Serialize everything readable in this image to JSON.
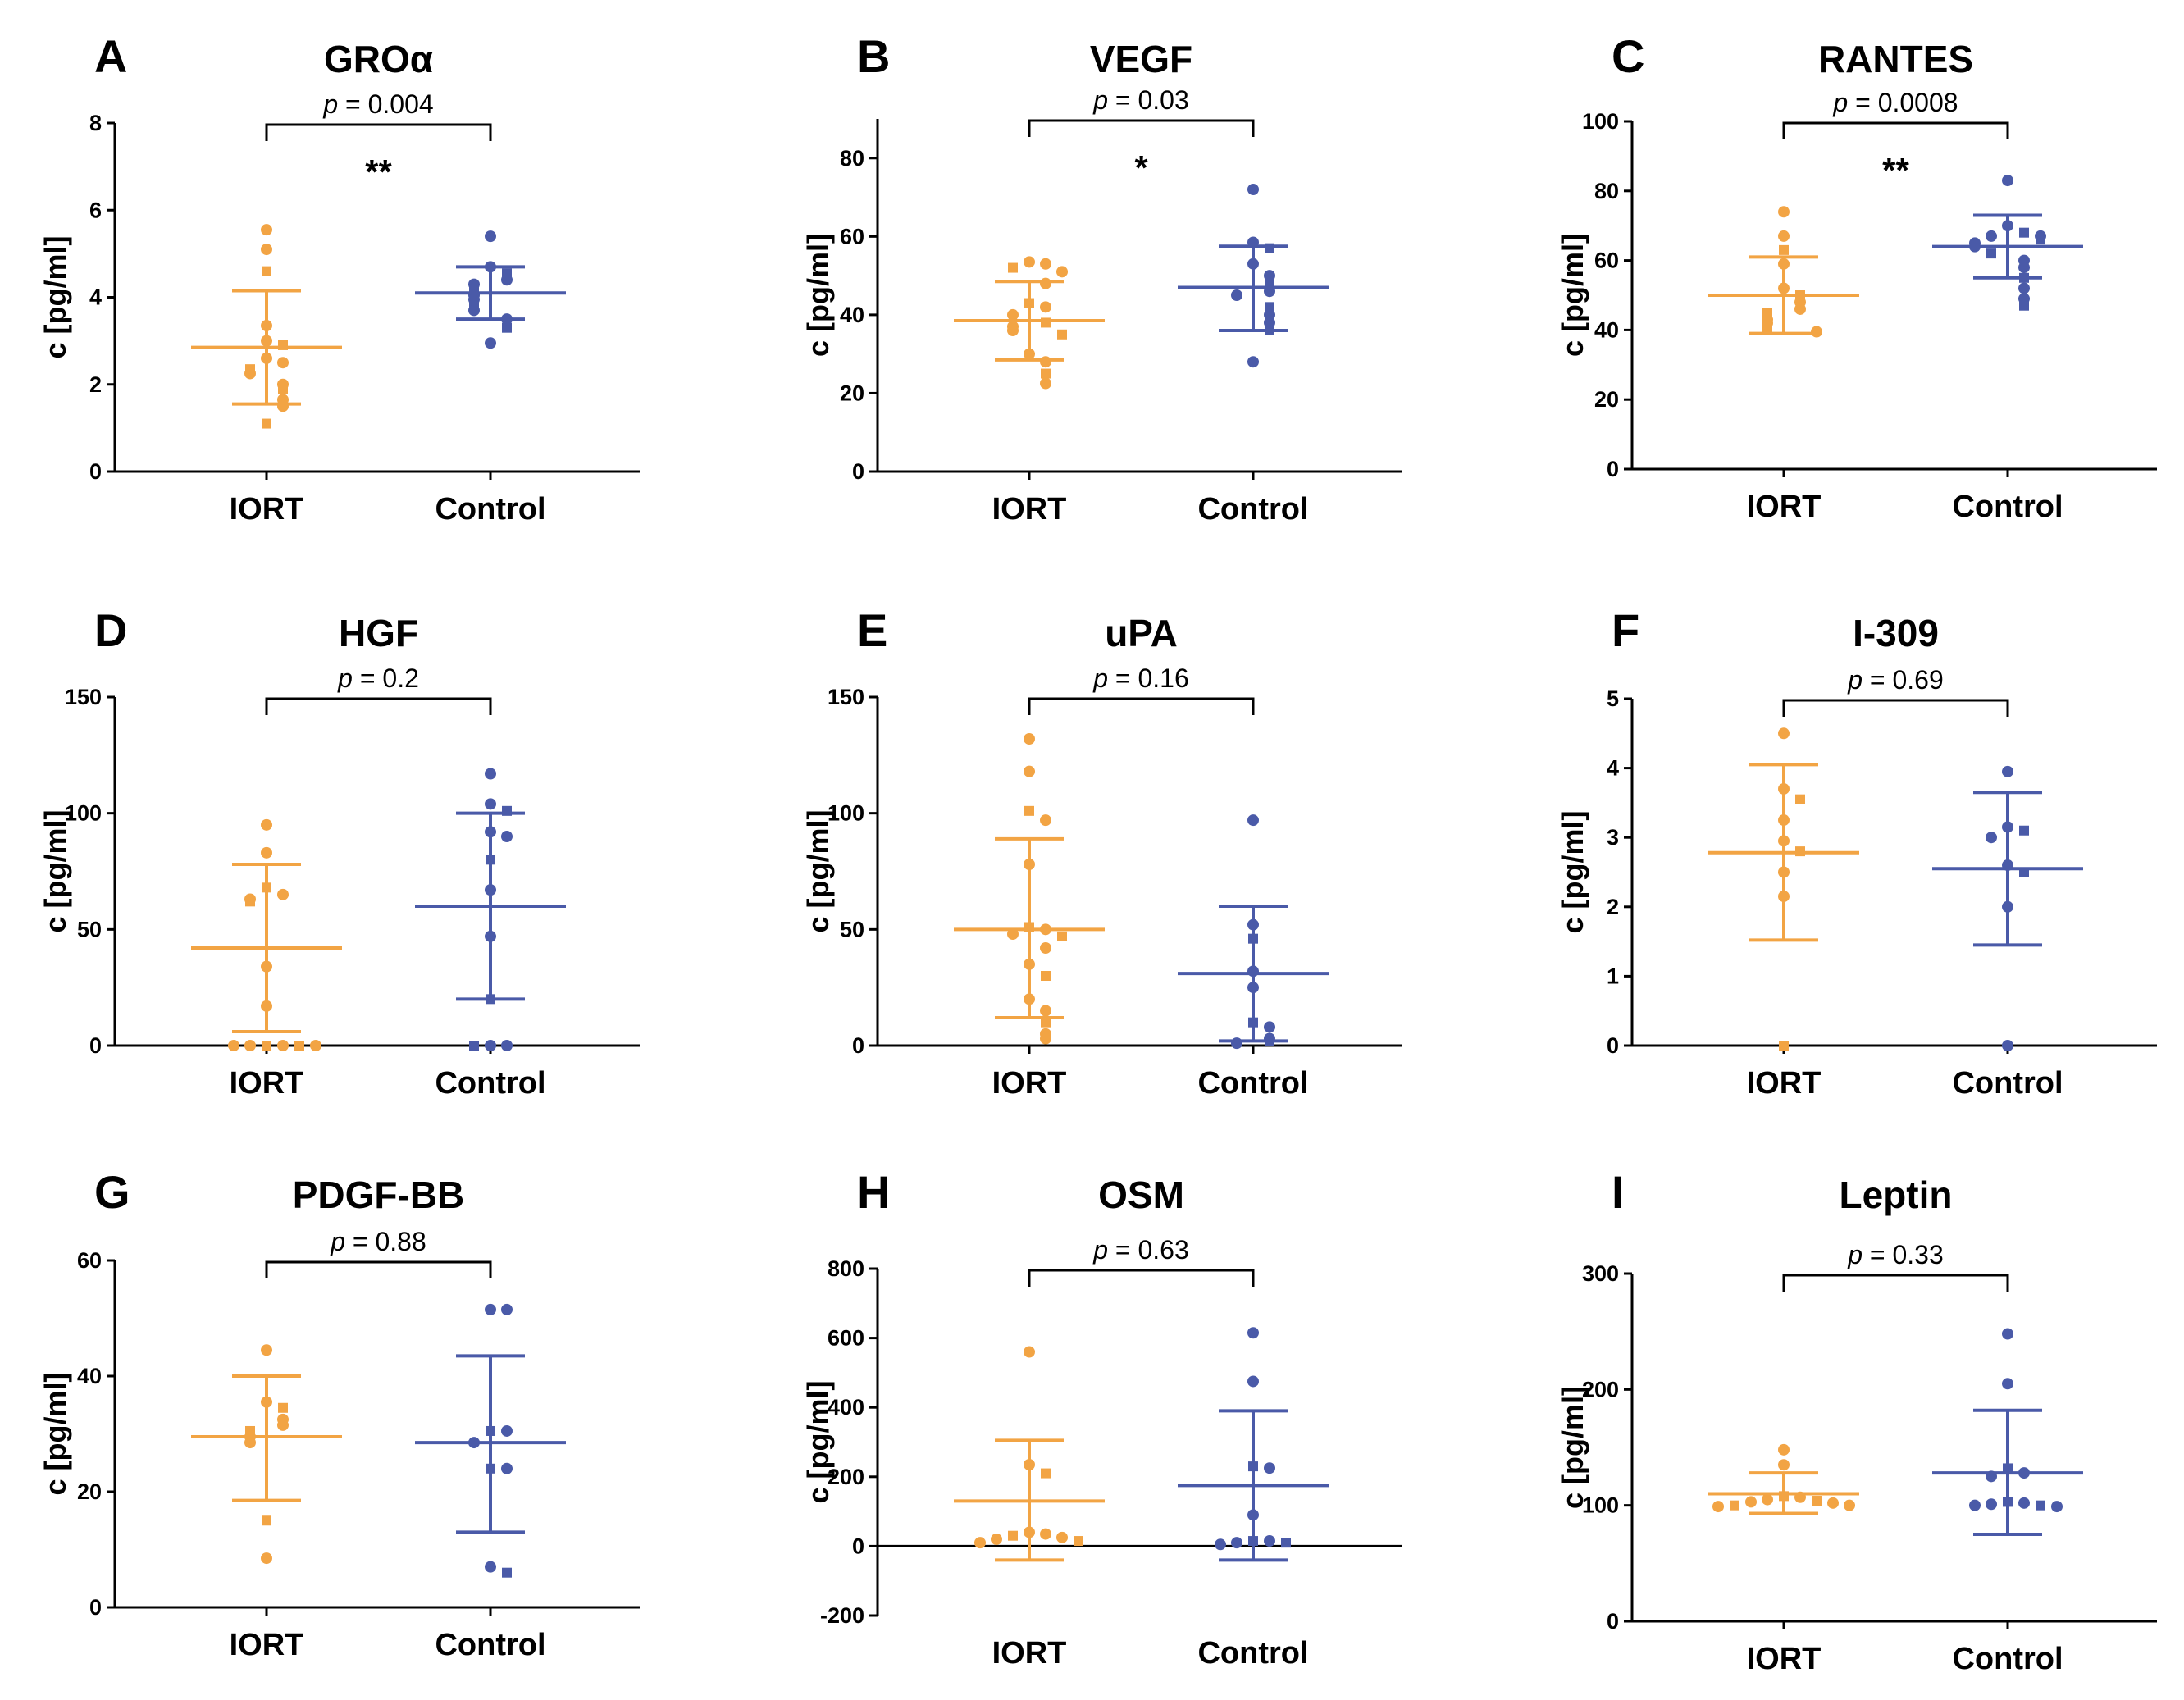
{
  "figure": {
    "colors": {
      "IORT": "#F2A444",
      "Control": "#4A5AA8",
      "axis": "#000000"
    }
  },
  "chart_data": [
    {
      "letter": "A",
      "title": "GROα",
      "type": "scatter",
      "categories": [
        "IORT",
        "Control"
      ],
      "ylabel": "c [pg/ml]",
      "ylim": [
        0,
        8
      ],
      "yticks": [
        0,
        2,
        4,
        6,
        8
      ],
      "p_label": "p",
      "p_value": "= 0.004",
      "significance": "**",
      "series": [
        {
          "name": "IORT",
          "mean": 2.85,
          "sd_low": 1.55,
          "sd_high": 4.15,
          "points": [
            5.55,
            5.1,
            4.6,
            3.35,
            3.0,
            2.9,
            2.6,
            2.5,
            2.35,
            2.25,
            2.0,
            1.9,
            1.65,
            1.5,
            1.1
          ]
        },
        {
          "name": "Control",
          "mean": 4.1,
          "sd_low": 3.5,
          "sd_high": 4.7,
          "points": [
            5.4,
            4.7,
            4.55,
            4.4,
            4.3,
            4.15,
            4.05,
            3.95,
            3.8,
            3.7,
            3.5,
            3.3,
            2.95
          ]
        }
      ]
    },
    {
      "letter": "B",
      "title": "VEGF",
      "type": "scatter",
      "categories": [
        "IORT",
        "Control"
      ],
      "ylabel": "c [pg/ml]",
      "ylim": [
        0,
        90
      ],
      "yticks": [
        0,
        20,
        40,
        60,
        80
      ],
      "p_label": "p",
      "p_value": "= 0.03",
      "significance": "*",
      "series": [
        {
          "name": "IORT",
          "mean": 38.5,
          "sd_low": 28.5,
          "sd_high": 48.5,
          "points": [
            53.5,
            53,
            52,
            51,
            48,
            43,
            42,
            40,
            38,
            37,
            36,
            35,
            30,
            28,
            25,
            22.5
          ]
        },
        {
          "name": "Control",
          "mean": 47,
          "sd_low": 36,
          "sd_high": 57.5,
          "points": [
            72,
            58.5,
            57,
            53,
            50,
            48,
            46,
            45,
            42,
            40,
            38,
            36,
            28
          ]
        }
      ]
    },
    {
      "letter": "C",
      "title": "RANTES",
      "type": "scatter",
      "categories": [
        "IORT",
        "Control"
      ],
      "ylabel": "c [pg/ml]",
      "ylim": [
        0,
        100
      ],
      "yticks": [
        0,
        20,
        40,
        60,
        80,
        100
      ],
      "p_label": "p",
      "p_value": "= 0.0008",
      "significance": "**",
      "series": [
        {
          "name": "IORT",
          "mean": 50,
          "sd_low": 39,
          "sd_high": 61,
          "points": [
            74,
            67,
            63,
            59,
            52,
            50,
            48,
            46,
            45,
            43,
            42,
            40,
            39.5
          ]
        },
        {
          "name": "Control",
          "mean": 64,
          "sd_low": 55,
          "sd_high": 73,
          "points": [
            83,
            70,
            68,
            67,
            67,
            66,
            65,
            64,
            62,
            60,
            58,
            55,
            52,
            49,
            47
          ]
        }
      ]
    },
    {
      "letter": "D",
      "title": "HGF",
      "type": "scatter",
      "categories": [
        "IORT",
        "Control"
      ],
      "ylabel": "c [pg/ml]",
      "ylim": [
        0,
        150
      ],
      "yticks": [
        0,
        50,
        100,
        150
      ],
      "p_label": "p",
      "p_value": "= 0.2",
      "significance": "",
      "series": [
        {
          "name": "IORT",
          "mean": 42,
          "sd_low": 6,
          "sd_high": 78,
          "points": [
            95,
            83,
            68,
            65,
            63,
            62,
            34,
            17,
            0,
            0,
            0,
            0,
            0,
            0
          ]
        },
        {
          "name": "Control",
          "mean": 60,
          "sd_low": 20,
          "sd_high": 100,
          "points": [
            117,
            104,
            101,
            92,
            90,
            80,
            67,
            47,
            20,
            0,
            0,
            0
          ]
        }
      ]
    },
    {
      "letter": "E",
      "title": "uPA",
      "type": "scatter",
      "categories": [
        "IORT",
        "Control"
      ],
      "ylabel": "c [pg/ml]",
      "ylim": [
        0,
        150
      ],
      "yticks": [
        0,
        50,
        100,
        150
      ],
      "p_label": "p",
      "p_value": "= 0.16",
      "significance": "",
      "series": [
        {
          "name": "IORT",
          "mean": 50,
          "sd_low": 12,
          "sd_high": 89,
          "points": [
            132,
            118,
            101,
            97,
            78,
            51,
            50,
            48,
            47,
            42,
            35,
            30,
            20,
            15,
            10,
            5,
            3
          ]
        },
        {
          "name": "Control",
          "mean": 31,
          "sd_low": 2,
          "sd_high": 60,
          "points": [
            97,
            52,
            46,
            32,
            25,
            10,
            8,
            3,
            2,
            1
          ]
        }
      ]
    },
    {
      "letter": "F",
      "title": "I-309",
      "type": "scatter",
      "categories": [
        "IORT",
        "Control"
      ],
      "ylabel": "c [pg/ml]",
      "ylim": [
        0,
        5
      ],
      "yticks": [
        0,
        1,
        2,
        3,
        4,
        5
      ],
      "p_label": "p",
      "p_value": "= 0.69",
      "significance": "",
      "series": [
        {
          "name": "IORT",
          "mean": 2.78,
          "sd_low": 1.52,
          "sd_high": 4.05,
          "points": [
            4.5,
            3.7,
            3.55,
            3.25,
            2.95,
            2.8,
            2.5,
            2.15,
            0
          ]
        },
        {
          "name": "Control",
          "mean": 2.55,
          "sd_low": 1.45,
          "sd_high": 3.65,
          "points": [
            3.95,
            3.15,
            3.1,
            3.0,
            2.6,
            2.5,
            2.0,
            0
          ]
        }
      ]
    },
    {
      "letter": "G",
      "title": "PDGF-BB",
      "type": "scatter",
      "categories": [
        "IORT",
        "Control"
      ],
      "ylabel": "c [pg/ml]",
      "ylim": [
        0,
        60
      ],
      "yticks": [
        0,
        20,
        40,
        60
      ],
      "p_label": "p",
      "p_value": "= 0.88",
      "significance": "",
      "series": [
        {
          "name": "IORT",
          "mean": 29.5,
          "sd_low": 18.5,
          "sd_high": 40,
          "points": [
            44.5,
            35.5,
            34.5,
            32.5,
            31.5,
            30.5,
            29.5,
            28.5,
            15,
            8.5
          ]
        },
        {
          "name": "Control",
          "mean": 28.5,
          "sd_low": 13,
          "sd_high": 43.5,
          "points": [
            51.5,
            51.5,
            30.5,
            30.5,
            28.5,
            24,
            24,
            7,
            6
          ]
        }
      ]
    },
    {
      "letter": "H",
      "title": "OSM",
      "type": "scatter",
      "categories": [
        "IORT",
        "Control"
      ],
      "ylabel": "c [pg/ml]",
      "ylim": [
        -200,
        800
      ],
      "yticks": [
        -200,
        0,
        200,
        400,
        600,
        800
      ],
      "p_label": "p",
      "p_value": "= 0.63",
      "significance": "",
      "series": [
        {
          "name": "IORT",
          "mean": 130,
          "sd_low": -40,
          "sd_high": 305,
          "points": [
            560,
            235,
            210,
            40,
            35,
            30,
            25,
            20,
            15,
            10
          ]
        },
        {
          "name": "Control",
          "mean": 175,
          "sd_low": -40,
          "sd_high": 390,
          "points": [
            615,
            475,
            230,
            225,
            90,
            15,
            15,
            10,
            10,
            5
          ]
        }
      ]
    },
    {
      "letter": "I",
      "title": "Leptin",
      "type": "scatter",
      "categories": [
        "IORT",
        "Control"
      ],
      "ylabel": "c [pg/ml]",
      "ylim": [
        0,
        300
      ],
      "yticks": [
        0,
        100,
        200,
        300
      ],
      "p_label": "p",
      "p_value": "= 0.33",
      "significance": "",
      "series": [
        {
          "name": "IORT",
          "mean": 110,
          "sd_low": 93,
          "sd_high": 128,
          "points": [
            148,
            135,
            108,
            107,
            105,
            104,
            103,
            102,
            100,
            100,
            99
          ]
        },
        {
          "name": "Control",
          "mean": 128,
          "sd_low": 75,
          "sd_high": 182,
          "points": [
            248,
            205,
            132,
            128,
            125,
            103,
            102,
            101,
            100,
            100,
            99
          ]
        }
      ]
    }
  ]
}
